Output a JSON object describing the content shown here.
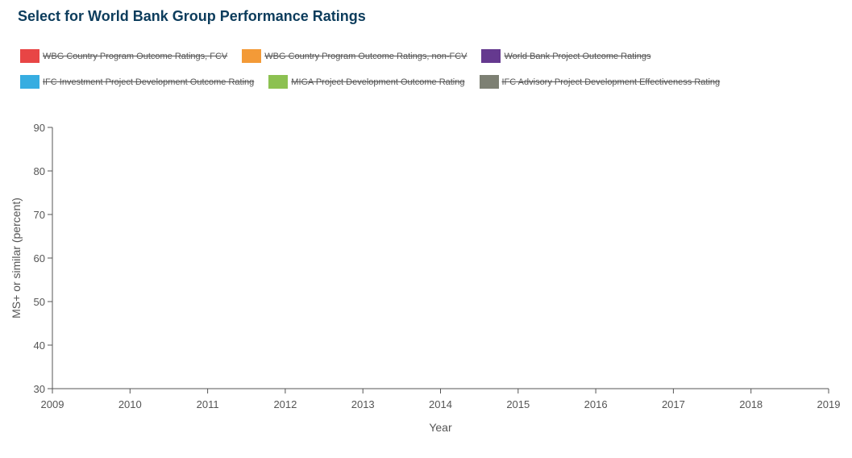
{
  "chart_data": {
    "type": "line",
    "title": "Select for World Bank Group Performance Ratings",
    "xlabel": "Year",
    "ylabel": "MS+ or similar (percent)",
    "xlim": [
      2009,
      2019
    ],
    "ylim": [
      30,
      90
    ],
    "x_ticks": [
      "2009",
      "2010",
      "2011",
      "2012",
      "2013",
      "2014",
      "2015",
      "2016",
      "2017",
      "2018",
      "2019"
    ],
    "y_ticks": [
      "30",
      "40",
      "50",
      "60",
      "70",
      "80",
      "90"
    ],
    "grid": false,
    "legend_position": "top",
    "series": [
      {
        "name": "WBG Country Program Outcome Ratings, FCV",
        "color": "#e84545",
        "values": [],
        "visible": false
      },
      {
        "name": "WBG Country Program Outcome Ratings, non-FCV",
        "color": "#f39a37",
        "values": [],
        "visible": false
      },
      {
        "name": "World Bank Project Outcome Ratings",
        "color": "#65398f",
        "values": [],
        "visible": false
      },
      {
        "name": "IFC Investment Project Development Outcome Rating",
        "color": "#37ade1",
        "values": [],
        "visible": false
      },
      {
        "name": "MIGA Project Development Outcome Rating",
        "color": "#8cc151",
        "values": [],
        "visible": false
      },
      {
        "name": "IFC Advisory Project Development Effectiveness Rating",
        "color": "#7d8073",
        "values": [],
        "visible": false
      }
    ]
  }
}
